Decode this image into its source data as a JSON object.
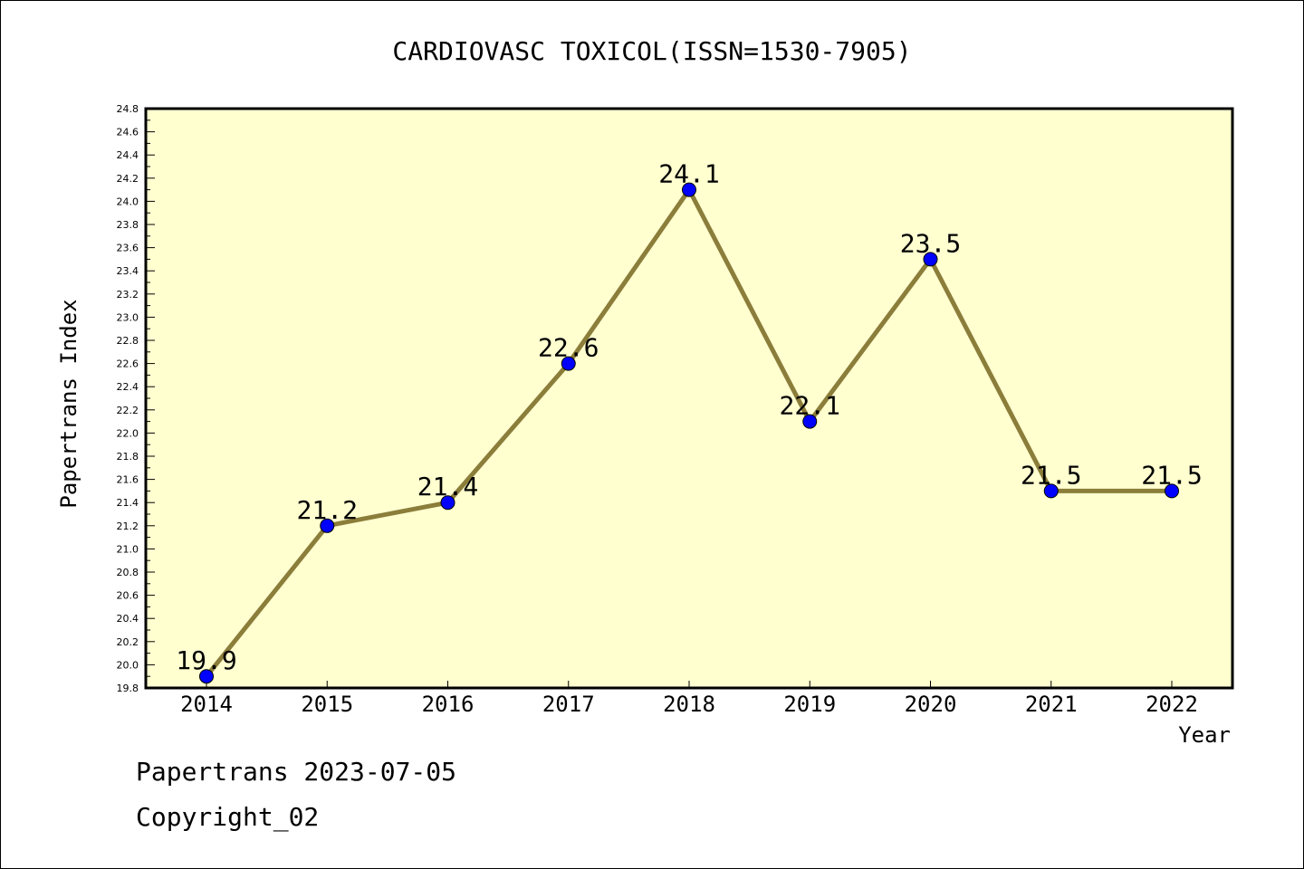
{
  "chart_data": {
    "type": "line",
    "title": "CARDIOVASC TOXICOL(ISSN=1530-7905)",
    "xlabel": "Year",
    "ylabel": "Papertrans Index",
    "categories": [
      "2014",
      "2015",
      "2016",
      "2017",
      "2018",
      "2019",
      "2020",
      "2021",
      "2022"
    ],
    "series": [
      {
        "values": [
          19.9,
          21.2,
          21.4,
          22.6,
          24.1,
          22.1,
          23.5,
          21.5,
          21.5
        ],
        "data_labels": [
          "19.9",
          "21.2",
          "21.4",
          "22.6",
          "24.1",
          "22.1",
          "23.5",
          "21.5",
          "21.5"
        ]
      }
    ],
    "ylim": [
      19.8,
      24.8
    ],
    "yticks": [
      "19.8",
      "20.0",
      "20.2",
      "20.4",
      "20.6",
      "20.8",
      "21.0",
      "21.2",
      "21.4",
      "21.6",
      "21.8",
      "22.0",
      "22.2",
      "22.4",
      "22.6",
      "22.8",
      "23.0",
      "23.2",
      "23.4",
      "23.6",
      "23.8",
      "24.0",
      "24.2",
      "24.4",
      "24.6",
      "24.8"
    ],
    "grid": false,
    "colors": {
      "plot_background": "#ffffd0",
      "line": "#8b7d3a",
      "marker": "#0000ff"
    }
  },
  "footer": {
    "line1": "Papertrans 2023-07-05",
    "line2": "Copyright_02"
  }
}
